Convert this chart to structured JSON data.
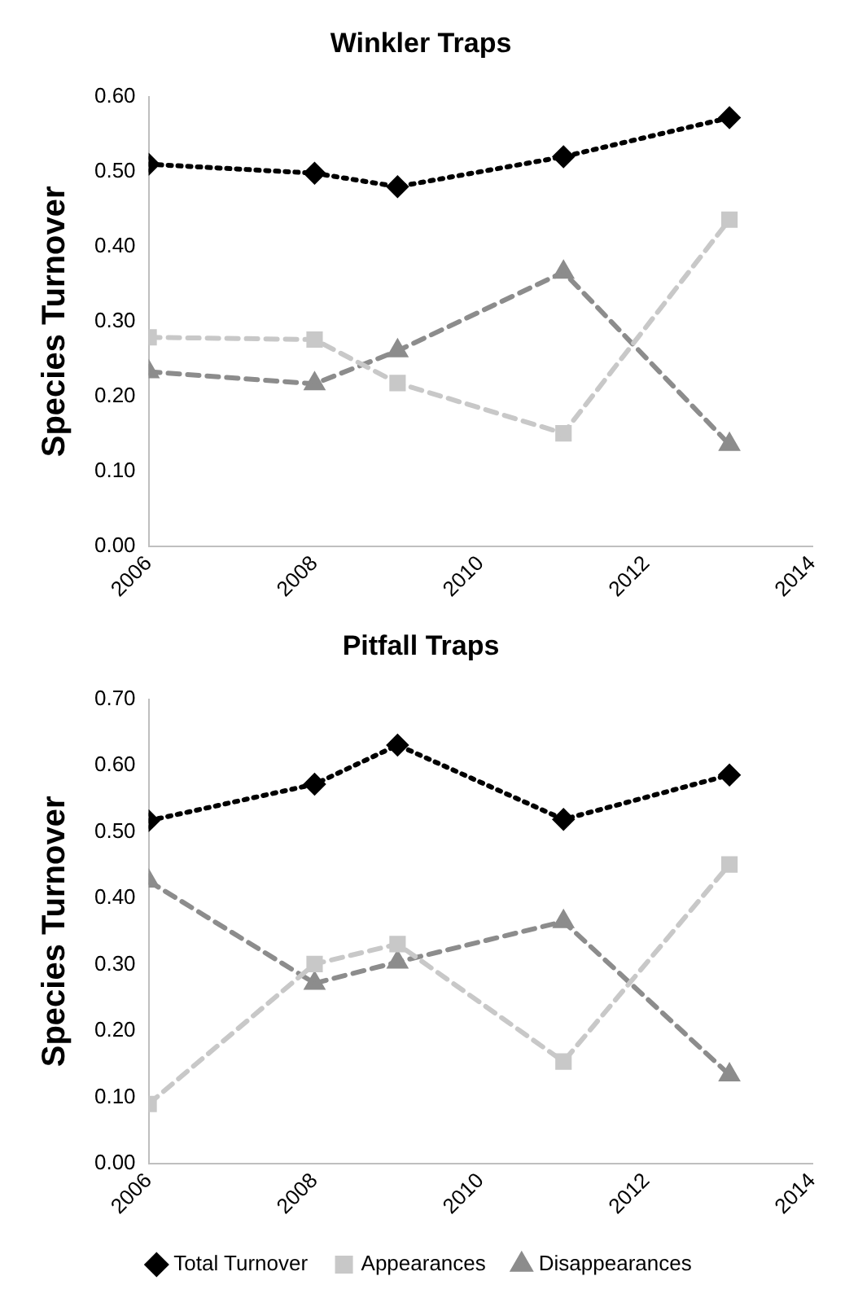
{
  "chart_data": [
    {
      "type": "line",
      "title": "Winkler Traps",
      "ylabel": "Species Turnover",
      "x": [
        2006,
        2008,
        2009,
        2011,
        2013
      ],
      "series": [
        {
          "color": "#000000",
          "marker": "diamond",
          "line_style": "dotted",
          "values": [
            0.51,
            0.498,
            0.48,
            0.52,
            0.572
          ]
        },
        {
          "color": "#c8c8c8",
          "marker": "square",
          "line_style": "dashed",
          "values": [
            0.279,
            0.276,
            0.218,
            0.151,
            0.436
          ]
        },
        {
          "color": "#8c8c8c",
          "marker": "triangle",
          "line_style": "dashed",
          "values": [
            0.233,
            0.217,
            0.261,
            0.366,
            0.136
          ]
        }
      ],
      "xlim": [
        2006,
        2014
      ],
      "xticks": [
        2006,
        2008,
        2010,
        2012,
        2014
      ],
      "ylim": [
        0,
        0.6
      ],
      "yticks": [
        {
          "value": 0,
          "label": "0.00"
        },
        {
          "value": 0.1,
          "label": "0.10"
        },
        {
          "value": 0.2,
          "label": "0.20"
        },
        {
          "value": 0.3,
          "label": "0.30"
        },
        {
          "value": 0.4,
          "label": "0.40"
        },
        {
          "value": 0.5,
          "label": "0.50"
        },
        {
          "value": 0.6,
          "label": "0.60"
        }
      ],
      "grid": false,
      "legend": false
    },
    {
      "type": "line",
      "title": "Pitfall Traps",
      "ylabel": "Species Turnover",
      "x": [
        2006,
        2008,
        2009,
        2011,
        2013
      ],
      "series": [
        {
          "name": "Total Turnover",
          "color": "#000000",
          "marker": "diamond",
          "line_style": "dotted",
          "values": [
            0.517,
            0.572,
            0.631,
            0.519,
            0.586
          ]
        },
        {
          "name": "Appearances",
          "color": "#c8c8c8",
          "marker": "square",
          "line_style": "dashed",
          "values": [
            0.09,
            0.301,
            0.331,
            0.154,
            0.451
          ]
        },
        {
          "name": "Disappearances",
          "color": "#8c8c8c",
          "marker": "triangle",
          "line_style": "dashed",
          "values": [
            0.426,
            0.272,
            0.304,
            0.365,
            0.134
          ]
        }
      ],
      "xlim": [
        2006,
        2014
      ],
      "xticks": [
        2006,
        2008,
        2010,
        2012,
        2014
      ],
      "ylim": [
        0,
        0.7
      ],
      "yticks": [
        {
          "value": 0,
          "label": "0.00"
        },
        {
          "value": 0.1,
          "label": "0.10"
        },
        {
          "value": 0.2,
          "label": "0.20"
        },
        {
          "value": 0.3,
          "label": "0.30"
        },
        {
          "value": 0.4,
          "label": "0.40"
        },
        {
          "value": 0.5,
          "label": "0.50"
        },
        {
          "value": 0.6,
          "label": "0.60"
        },
        {
          "value": 0.7,
          "label": "0.70"
        }
      ],
      "grid": false,
      "legend": "bottom"
    }
  ]
}
